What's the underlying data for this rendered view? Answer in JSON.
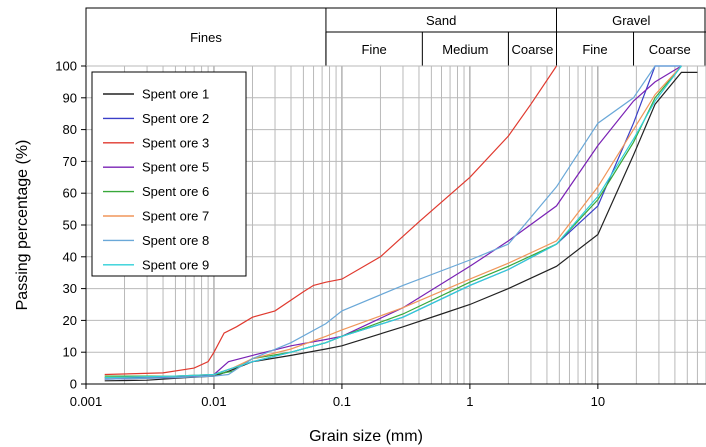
{
  "chart_data": {
    "type": "line",
    "xlabel": "Grain size (mm)",
    "ylabel": "Passing percentage (%)",
    "x_scale": "log",
    "xlim": [
      0.001,
      70
    ],
    "ylim": [
      0,
      100
    ],
    "x_ticks": [
      {
        "value": 0.001,
        "label": "0.001"
      },
      {
        "value": 0.01,
        "label": "0.01"
      },
      {
        "value": 0.1,
        "label": "0.1"
      },
      {
        "value": 1,
        "label": "1"
      },
      {
        "value": 10,
        "label": "10"
      }
    ],
    "y_ticks": [
      0,
      10,
      20,
      30,
      40,
      50,
      60,
      70,
      80,
      90,
      100
    ],
    "grid": true,
    "legend_position": "top-left",
    "classification_header": {
      "top_row": [
        {
          "label": "Sand",
          "from": 0.075,
          "to": 4.75
        },
        {
          "label": "Gravel",
          "from": 4.75,
          "to": 70
        }
      ],
      "bottom_row": [
        {
          "label": "Fines",
          "from": 0.001,
          "to": 0.075
        },
        {
          "label": "Fine",
          "from": 0.075,
          "to": 0.425
        },
        {
          "label": "Medium",
          "from": 0.425,
          "to": 2
        },
        {
          "label": "Coarse",
          "from": 2,
          "to": 4.75
        },
        {
          "label": "Fine",
          "from": 4.75,
          "to": 19
        },
        {
          "label": "Coarse",
          "from": 19,
          "to": 70
        }
      ]
    },
    "series": [
      {
        "name": "Spent ore 1",
        "color": "#222222",
        "points": [
          [
            0.0014,
            1
          ],
          [
            0.003,
            1.2
          ],
          [
            0.006,
            2
          ],
          [
            0.01,
            2.5
          ],
          [
            0.013,
            4
          ],
          [
            0.02,
            7
          ],
          [
            0.04,
            9
          ],
          [
            0.075,
            11
          ],
          [
            0.1,
            12
          ],
          [
            0.3,
            18
          ],
          [
            0.6,
            22
          ],
          [
            1,
            25
          ],
          [
            2,
            30
          ],
          [
            4.75,
            37
          ],
          [
            10,
            47
          ],
          [
            19,
            72
          ],
          [
            28,
            88
          ],
          [
            45,
            98
          ],
          [
            60,
            98
          ]
        ]
      },
      {
        "name": "Spent ore 2",
        "color": "#3a3fc8",
        "points": [
          [
            0.0014,
            2
          ],
          [
            0.004,
            2
          ],
          [
            0.008,
            2.5
          ],
          [
            0.01,
            3
          ],
          [
            0.014,
            5
          ],
          [
            0.02,
            7
          ],
          [
            0.04,
            10
          ],
          [
            0.075,
            13
          ],
          [
            0.1,
            15
          ],
          [
            0.3,
            21
          ],
          [
            1,
            31
          ],
          [
            2,
            36
          ],
          [
            4.75,
            44
          ],
          [
            10,
            56
          ],
          [
            19,
            82
          ],
          [
            28,
            100
          ],
          [
            45,
            100
          ]
        ]
      },
      {
        "name": "Spent ore 3",
        "color": "#e03a2f",
        "points": [
          [
            0.0014,
            3
          ],
          [
            0.004,
            3.5
          ],
          [
            0.007,
            5
          ],
          [
            0.009,
            7
          ],
          [
            0.01,
            10
          ],
          [
            0.012,
            16
          ],
          [
            0.015,
            18
          ],
          [
            0.02,
            21
          ],
          [
            0.03,
            23
          ],
          [
            0.05,
            29
          ],
          [
            0.06,
            31
          ],
          [
            0.075,
            32
          ],
          [
            0.1,
            33
          ],
          [
            0.2,
            40
          ],
          [
            0.4,
            51
          ],
          [
            1,
            65
          ],
          [
            2,
            78
          ],
          [
            3,
            88
          ],
          [
            4.75,
            100
          ]
        ]
      },
      {
        "name": "Spent ore 5",
        "color": "#7a22b5",
        "points": [
          [
            0.0014,
            1.5
          ],
          [
            0.005,
            2
          ],
          [
            0.01,
            3
          ],
          [
            0.013,
            7
          ],
          [
            0.02,
            9
          ],
          [
            0.04,
            12
          ],
          [
            0.075,
            14
          ],
          [
            0.1,
            15
          ],
          [
            0.3,
            24
          ],
          [
            1,
            37
          ],
          [
            2,
            45
          ],
          [
            4.75,
            56
          ],
          [
            10,
            75
          ],
          [
            19,
            89
          ],
          [
            28,
            95
          ],
          [
            45,
            100
          ]
        ]
      },
      {
        "name": "Spent ore 6",
        "color": "#38a83a",
        "points": [
          [
            0.0014,
            2.5
          ],
          [
            0.005,
            2.5
          ],
          [
            0.01,
            3
          ],
          [
            0.014,
            4
          ],
          [
            0.02,
            8
          ],
          [
            0.04,
            10
          ],
          [
            0.075,
            13
          ],
          [
            0.1,
            15
          ],
          [
            0.3,
            22
          ],
          [
            1,
            32
          ],
          [
            2,
            37
          ],
          [
            4.75,
            44
          ],
          [
            10,
            58
          ],
          [
            19,
            76
          ],
          [
            28,
            90
          ],
          [
            45,
            100
          ]
        ]
      },
      {
        "name": "Spent ore 7",
        "color": "#f0965a",
        "points": [
          [
            0.0014,
            2
          ],
          [
            0.005,
            2.5
          ],
          [
            0.01,
            3
          ],
          [
            0.014,
            5
          ],
          [
            0.02,
            8
          ],
          [
            0.04,
            11
          ],
          [
            0.075,
            15
          ],
          [
            0.1,
            17
          ],
          [
            0.3,
            24
          ],
          [
            1,
            33
          ],
          [
            2,
            38
          ],
          [
            4.75,
            45
          ],
          [
            10,
            62
          ],
          [
            19,
            80
          ],
          [
            28,
            91
          ],
          [
            45,
            100
          ]
        ]
      },
      {
        "name": "Spent ore 8",
        "color": "#6aa8d8",
        "points": [
          [
            0.0014,
            1.5
          ],
          [
            0.005,
            2
          ],
          [
            0.01,
            2.5
          ],
          [
            0.013,
            3
          ],
          [
            0.02,
            8
          ],
          [
            0.04,
            13
          ],
          [
            0.075,
            19
          ],
          [
            0.1,
            23
          ],
          [
            0.3,
            31
          ],
          [
            1,
            39
          ],
          [
            2,
            44
          ],
          [
            4.75,
            62
          ],
          [
            10,
            82
          ],
          [
            19,
            90
          ],
          [
            28,
            100
          ],
          [
            45,
            100
          ]
        ]
      },
      {
        "name": "Spent ore 9",
        "color": "#2fd0d8",
        "points": [
          [
            0.0014,
            2
          ],
          [
            0.005,
            2.5
          ],
          [
            0.01,
            3
          ],
          [
            0.014,
            5
          ],
          [
            0.02,
            7
          ],
          [
            0.04,
            10
          ],
          [
            0.075,
            13
          ],
          [
            0.1,
            15
          ],
          [
            0.3,
            21
          ],
          [
            1,
            31
          ],
          [
            2,
            36
          ],
          [
            4.75,
            44
          ],
          [
            10,
            59
          ],
          [
            19,
            77
          ],
          [
            28,
            89
          ],
          [
            45,
            100
          ]
        ]
      }
    ]
  }
}
